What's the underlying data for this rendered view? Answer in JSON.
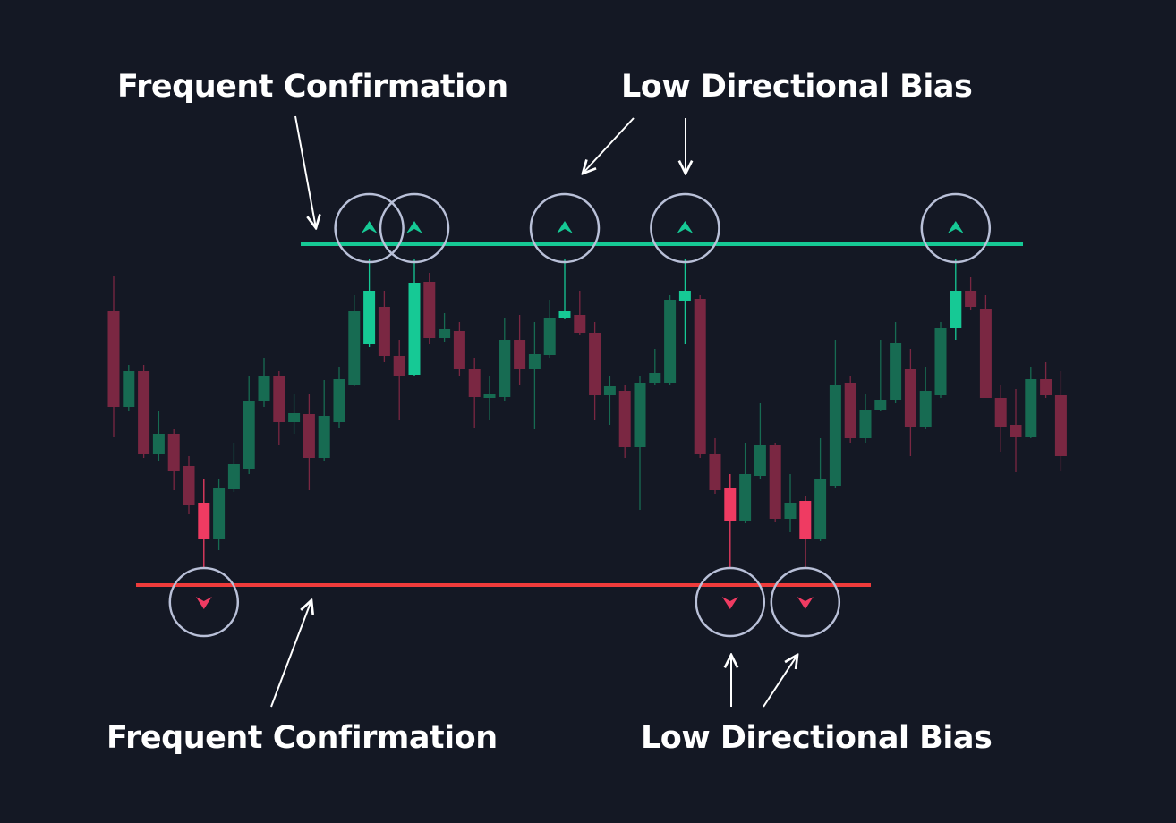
{
  "chart_data": {
    "type": "candlestick",
    "annotations": [
      "Frequent Confirmation",
      "Low Directional Bias",
      "Frequent Confirmation",
      "Low Directional Bias"
    ],
    "open": [
      572,
      465,
      505,
      412,
      435,
      399,
      358,
      317,
      373,
      396,
      472,
      500,
      448,
      457,
      408,
      448,
      490,
      535,
      577,
      522,
      501,
      605,
      542,
      550,
      508,
      475,
      476,
      540,
      507,
      523,
      565,
      568,
      548,
      479,
      483,
      420,
      492,
      492,
      583,
      586,
      412,
      374,
      338,
      388,
      422,
      340,
      360,
      318,
      377,
      492,
      430,
      462,
      473,
      507,
      443,
      479,
      553,
      595,
      575,
      475,
      445,
      432,
      496,
      478
    ],
    "high": [
      612,
      512,
      512,
      460,
      440,
      410,
      385,
      385,
      425,
      500,
      520,
      505,
      480,
      480,
      495,
      510,
      590,
      630,
      595,
      540,
      630,
      615,
      570,
      560,
      520,
      500,
      565,
      568,
      560,
      585,
      630,
      595,
      560,
      500,
      490,
      500,
      530,
      590,
      630,
      590,
      430,
      390,
      425,
      470,
      425,
      390,
      365,
      430,
      540,
      500,
      480,
      540,
      560,
      530,
      510,
      560,
      630,
      610,
      590,
      490,
      485,
      510,
      515,
      505
    ],
    "low": [
      432,
      460,
      408,
      405,
      372,
      345,
      285,
      305,
      370,
      390,
      465,
      422,
      435,
      372,
      405,
      442,
      488,
      532,
      515,
      450,
      500,
      535,
      538,
      500,
      442,
      450,
      472,
      490,
      440,
      520,
      563,
      545,
      450,
      445,
      408,
      350,
      490,
      490,
      535,
      408,
      368,
      285,
      335,
      385,
      337,
      325,
      285,
      315,
      375,
      425,
      425,
      460,
      470,
      410,
      440,
      475,
      540,
      573,
      475,
      415,
      392,
      430,
      475,
      393
    ],
    "close": [
      465,
      505,
      412,
      435,
      393,
      355,
      317,
      375,
      401,
      472,
      500,
      448,
      458,
      408,
      455,
      496,
      572,
      595,
      522,
      500,
      604,
      542,
      552,
      508,
      476,
      480,
      540,
      508,
      524,
      565,
      572,
      548,
      478,
      488,
      420,
      492,
      503,
      585,
      595,
      412,
      372,
      338,
      390,
      422,
      340,
      358,
      318,
      385,
      490,
      430,
      462,
      473,
      537,
      443,
      483,
      553,
      595,
      577,
      475,
      443,
      432,
      496,
      478,
      410
    ],
    "highlight": [
      6,
      17,
      20,
      30,
      38,
      41,
      46,
      56
    ],
    "up_color": "#176b52",
    "down_color": "#7a2742",
    "highlight_up_color": "#16c995",
    "highlight_down_color": "#ef3b62",
    "resistance": 647,
    "support": 266
  }
}
